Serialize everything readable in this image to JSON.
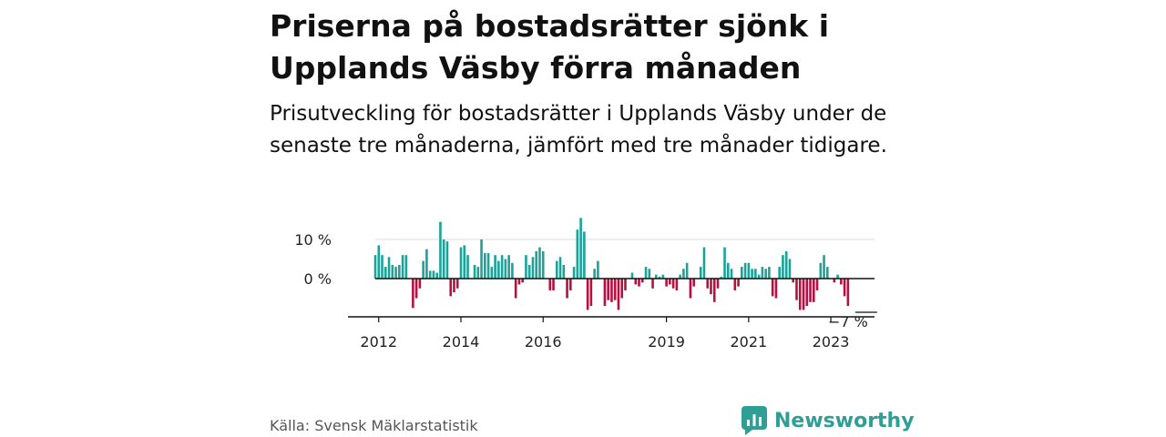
{
  "title": "Priserna på bostadsrätter sjönk i Upplands Väsby förra månaden",
  "subtitle": "Prisutveckling för bostadsrätter i Upplands Väsby under de senaste tre månaderna, jämfört med tre månader tidigare.",
  "source": "Källa: Svensk Mäklarstatistik",
  "brand": "Newsworthy",
  "colors": {
    "positive": "#1aa398",
    "negative": "#b5103f",
    "axis": "#111111",
    "grid": "#dddddd",
    "brand": "#2e9e96"
  },
  "chart_data": {
    "type": "bar",
    "title": "",
    "xlabel": "",
    "ylabel": "",
    "ylim": [
      -8.5,
      16
    ],
    "y_ticks": [
      {
        "value": 10,
        "label": "10 %"
      },
      {
        "value": 0,
        "label": "0 %"
      }
    ],
    "x_ticks": [
      {
        "index": 1,
        "label": "2012"
      },
      {
        "index": 25,
        "label": "2014"
      },
      {
        "index": 49,
        "label": "2016"
      },
      {
        "index": 85,
        "label": "2019"
      },
      {
        "index": 109,
        "label": "2021"
      },
      {
        "index": 133,
        "label": "2023"
      }
    ],
    "end_label": "−7 %",
    "start": "2011-12",
    "values": [
      6,
      8.5,
      6,
      3,
      5.5,
      3.5,
      3,
      3.5,
      6,
      6,
      0,
      -7.5,
      -5,
      -2.5,
      4.5,
      7.5,
      2,
      2,
      1.5,
      14.5,
      10,
      9.5,
      -4.5,
      -3.5,
      -2.5,
      8,
      8.5,
      6,
      0,
      3.5,
      3,
      10,
      6.5,
      6.5,
      3,
      6,
      4.5,
      6,
      5,
      6,
      4,
      -5,
      -1.5,
      -1,
      6,
      3.5,
      5.5,
      7,
      8,
      7,
      0,
      -3,
      -3,
      4.5,
      5.5,
      3.5,
      -5,
      -3,
      3,
      12.5,
      15.5,
      12,
      -8,
      -7,
      2.5,
      4.5,
      0,
      -7,
      -5.5,
      -6,
      -5.5,
      -8,
      -5,
      -3,
      0,
      1.5,
      -1.5,
      -2,
      -1,
      3,
      2.5,
      -2.5,
      1,
      0.5,
      1,
      -2,
      -1.5,
      -2.5,
      -3,
      1,
      2.5,
      4,
      -5,
      -2,
      0,
      3,
      8,
      -2.5,
      -4,
      -6,
      -2.5,
      0.5,
      8,
      4,
      2.5,
      -3,
      -2,
      3,
      4,
      4,
      2.5,
      2.5,
      1,
      3,
      2.5,
      3,
      -4.5,
      -5,
      3,
      6,
      7,
      5,
      -1,
      -5.5,
      -8,
      -8,
      -7,
      -6,
      -6,
      -3,
      4,
      6,
      3,
      0,
      -1,
      1,
      -1.5,
      -4.5,
      -7
    ]
  }
}
